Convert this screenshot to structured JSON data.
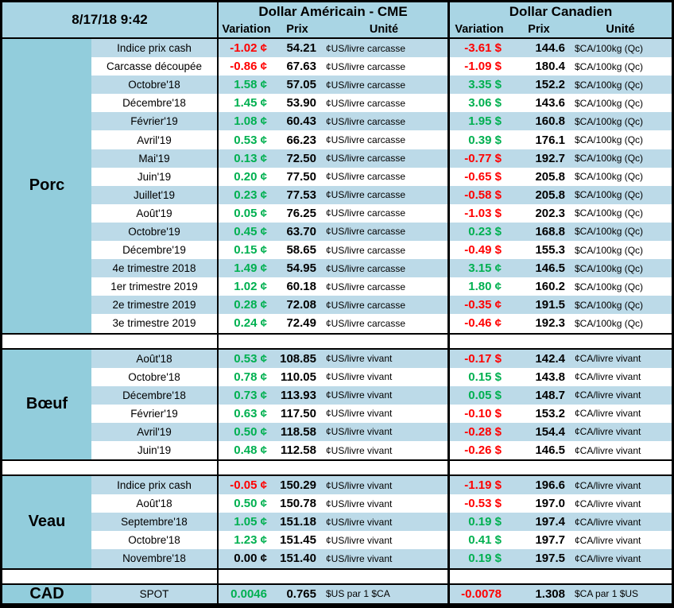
{
  "meta": {
    "timestamp": "8/17/18 9:42"
  },
  "header": {
    "us_title": "Dollar Américain - CME",
    "ca_title": "Dollar Canadien",
    "col_variation": "Variation",
    "col_prix": "Prix",
    "col_unite": "Unité"
  },
  "colors": {
    "positive": "#00B050",
    "negative": "#FF0000",
    "neutral": "#000000",
    "header_bg": "#A9D5E4",
    "section_bg": "#92CDDC",
    "stripe_bg": "#BCDAE8"
  },
  "sections": [
    {
      "label": "Porc",
      "rows": [
        {
          "label": "Indice prix cash",
          "us": {
            "variation": "-1.02 ¢",
            "prix": "54.21",
            "unite": "¢US/livre carcasse"
          },
          "ca": {
            "variation": "-3.61 $",
            "prix": "144.6",
            "unite": "$CA/100kg (Qc)"
          }
        },
        {
          "label": "Carcasse découpée",
          "us": {
            "variation": "-0.86 ¢",
            "prix": "67.63",
            "unite": "¢US/livre carcasse"
          },
          "ca": {
            "variation": "-1.09 $",
            "prix": "180.4",
            "unite": "$CA/100kg (Qc)"
          }
        },
        {
          "label": "Octobre'18",
          "us": {
            "variation": "1.58 ¢",
            "prix": "57.05",
            "unite": "¢US/livre carcasse"
          },
          "ca": {
            "variation": "3.35 $",
            "prix": "152.2",
            "unite": "$CA/100kg (Qc)"
          }
        },
        {
          "label": "Décembre'18",
          "us": {
            "variation": "1.45 ¢",
            "prix": "53.90",
            "unite": "¢US/livre carcasse"
          },
          "ca": {
            "variation": "3.06 $",
            "prix": "143.6",
            "unite": "$CA/100kg (Qc)"
          }
        },
        {
          "label": "Février'19",
          "us": {
            "variation": "1.08 ¢",
            "prix": "60.43",
            "unite": "¢US/livre carcasse"
          },
          "ca": {
            "variation": "1.95 $",
            "prix": "160.8",
            "unite": "$CA/100kg (Qc)"
          }
        },
        {
          "label": "Avril'19",
          "us": {
            "variation": "0.53 ¢",
            "prix": "66.23",
            "unite": "¢US/livre carcasse"
          },
          "ca": {
            "variation": "0.39 $",
            "prix": "176.1",
            "unite": "$CA/100kg (Qc)"
          }
        },
        {
          "label": "Mai'19",
          "us": {
            "variation": "0.13 ¢",
            "prix": "72.50",
            "unite": "¢US/livre carcasse"
          },
          "ca": {
            "variation": "-0.77 $",
            "prix": "192.7",
            "unite": "$CA/100kg (Qc)"
          }
        },
        {
          "label": "Juin'19",
          "us": {
            "variation": "0.20 ¢",
            "prix": "77.50",
            "unite": "¢US/livre carcasse"
          },
          "ca": {
            "variation": "-0.65 $",
            "prix": "205.8",
            "unite": "$CA/100kg (Qc)"
          }
        },
        {
          "label": "Juillet'19",
          "us": {
            "variation": "0.23 ¢",
            "prix": "77.53",
            "unite": "¢US/livre carcasse"
          },
          "ca": {
            "variation": "-0.58 $",
            "prix": "205.8",
            "unite": "$CA/100kg (Qc)"
          }
        },
        {
          "label": "Août'19",
          "us": {
            "variation": "0.05 ¢",
            "prix": "76.25",
            "unite": "¢US/livre carcasse"
          },
          "ca": {
            "variation": "-1.03 $",
            "prix": "202.3",
            "unite": "$CA/100kg (Qc)"
          }
        },
        {
          "label": "Octobre'19",
          "us": {
            "variation": "0.45 ¢",
            "prix": "63.70",
            "unite": "¢US/livre carcasse"
          },
          "ca": {
            "variation": "0.23 $",
            "prix": "168.8",
            "unite": "$CA/100kg (Qc)"
          }
        },
        {
          "label": "Décembre'19",
          "us": {
            "variation": "0.15 ¢",
            "prix": "58.65",
            "unite": "¢US/livre carcasse"
          },
          "ca": {
            "variation": "-0.49 $",
            "prix": "155.3",
            "unite": "$CA/100kg (Qc)"
          }
        },
        {
          "label": "4e trimestre 2018",
          "us": {
            "variation": "1.49 ¢",
            "prix": "54.95",
            "unite": "¢US/livre carcasse"
          },
          "ca": {
            "variation": "3.15 ¢",
            "prix": "146.5",
            "unite": "$CA/100kg (Qc)"
          }
        },
        {
          "label": "1er trimestre 2019",
          "us": {
            "variation": "1.02 ¢",
            "prix": "60.18",
            "unite": "¢US/livre carcasse"
          },
          "ca": {
            "variation": "1.80 ¢",
            "prix": "160.2",
            "unite": "$CA/100kg (Qc)"
          }
        },
        {
          "label": "2e trimestre 2019",
          "us": {
            "variation": "0.28 ¢",
            "prix": "72.08",
            "unite": "¢US/livre carcasse"
          },
          "ca": {
            "variation": "-0.35 ¢",
            "prix": "191.5",
            "unite": "$CA/100kg (Qc)"
          }
        },
        {
          "label": "3e trimestre 2019",
          "us": {
            "variation": "0.24 ¢",
            "prix": "72.49",
            "unite": "¢US/livre carcasse"
          },
          "ca": {
            "variation": "-0.46 ¢",
            "prix": "192.3",
            "unite": "$CA/100kg (Qc)"
          }
        }
      ]
    },
    {
      "label": "Bœuf",
      "rows": [
        {
          "label": "Août'18",
          "us": {
            "variation": "0.53 ¢",
            "prix": "108.85",
            "unite": "¢US/livre vivant"
          },
          "ca": {
            "variation": "-0.17 $",
            "prix": "142.4",
            "unite": "¢CA/livre vivant"
          }
        },
        {
          "label": "Octobre'18",
          "us": {
            "variation": "0.78 ¢",
            "prix": "110.05",
            "unite": "¢US/livre vivant"
          },
          "ca": {
            "variation": "0.15 $",
            "prix": "143.8",
            "unite": "¢CA/livre vivant"
          }
        },
        {
          "label": "Décembre'18",
          "us": {
            "variation": "0.73 ¢",
            "prix": "113.93",
            "unite": "¢US/livre vivant"
          },
          "ca": {
            "variation": "0.05 $",
            "prix": "148.7",
            "unite": "¢CA/livre vivant"
          }
        },
        {
          "label": "Février'19",
          "us": {
            "variation": "0.63 ¢",
            "prix": "117.50",
            "unite": "¢US/livre vivant"
          },
          "ca": {
            "variation": "-0.10 $",
            "prix": "153.2",
            "unite": "¢CA/livre vivant"
          }
        },
        {
          "label": "Avril'19",
          "us": {
            "variation": "0.50 ¢",
            "prix": "118.58",
            "unite": "¢US/livre vivant"
          },
          "ca": {
            "variation": "-0.28 $",
            "prix": "154.4",
            "unite": "¢CA/livre vivant"
          }
        },
        {
          "label": "Juin'19",
          "us": {
            "variation": "0.48 ¢",
            "prix": "112.58",
            "unite": "¢US/livre vivant"
          },
          "ca": {
            "variation": "-0.26 $",
            "prix": "146.5",
            "unite": "¢CA/livre vivant"
          }
        }
      ]
    },
    {
      "label": "Veau",
      "rows": [
        {
          "label": "Indice prix cash",
          "us": {
            "variation": "-0.05 ¢",
            "prix": "150.29",
            "unite": "¢US/livre vivant"
          },
          "ca": {
            "variation": "-1.19 $",
            "prix": "196.6",
            "unite": "¢CA/livre vivant"
          }
        },
        {
          "label": "Août'18",
          "us": {
            "variation": "0.50 ¢",
            "prix": "150.78",
            "unite": "¢US/livre vivant"
          },
          "ca": {
            "variation": "-0.53 $",
            "prix": "197.0",
            "unite": "¢CA/livre vivant"
          }
        },
        {
          "label": "Septembre'18",
          "us": {
            "variation": "1.05 ¢",
            "prix": "151.18",
            "unite": "¢US/livre vivant"
          },
          "ca": {
            "variation": "0.19 $",
            "prix": "197.4",
            "unite": "¢CA/livre vivant"
          }
        },
        {
          "label": "Octobre'18",
          "us": {
            "variation": "1.23 ¢",
            "prix": "151.45",
            "unite": "¢US/livre vivant"
          },
          "ca": {
            "variation": "0.41 $",
            "prix": "197.7",
            "unite": "¢CA/livre vivant"
          }
        },
        {
          "label": "Novembre'18",
          "us": {
            "variation": "0.00 ¢",
            "prix": "151.40",
            "unite": "¢US/livre vivant"
          },
          "ca": {
            "variation": "0.19 $",
            "prix": "197.5",
            "unite": "¢CA/livre vivant"
          }
        }
      ]
    },
    {
      "label": "CAD",
      "rows": [
        {
          "label": "SPOT",
          "us": {
            "variation": "0.0046",
            "prix": "0.765",
            "unite": "$US par 1 $CA"
          },
          "ca": {
            "variation": "-0.0078",
            "prix": "1.308",
            "unite": "$CA par 1 $US"
          }
        }
      ]
    }
  ]
}
